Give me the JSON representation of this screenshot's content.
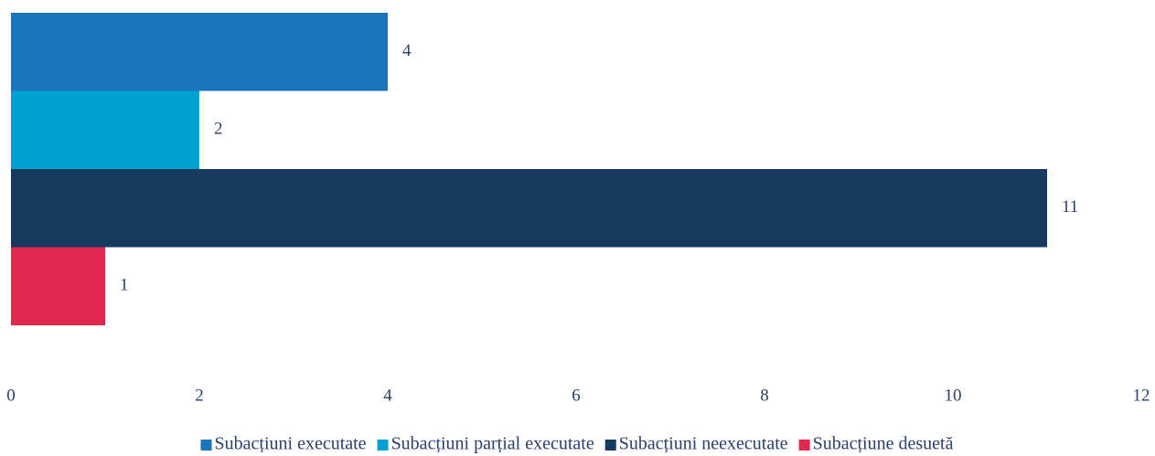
{
  "chart_data": {
    "type": "bar",
    "orientation": "horizontal",
    "categories": [
      null
    ],
    "series": [
      {
        "name": "Subacțiuni executate",
        "color": "#1b75bc",
        "values": [
          4
        ]
      },
      {
        "name": "Subacțiuni parțial executate",
        "color": "#00a0d2",
        "values": [
          2
        ]
      },
      {
        "name": "Subacțiuni neexecutate",
        "color": "#163a5f",
        "values": [
          11
        ]
      },
      {
        "name": "Subacțiune desuetă",
        "color": "#e0284f",
        "values": [
          1
        ]
      }
    ],
    "xlim": [
      0,
      12
    ],
    "xticks": [
      0,
      2,
      4,
      6,
      8,
      10,
      12
    ],
    "grid": false,
    "legend": "bottom"
  }
}
